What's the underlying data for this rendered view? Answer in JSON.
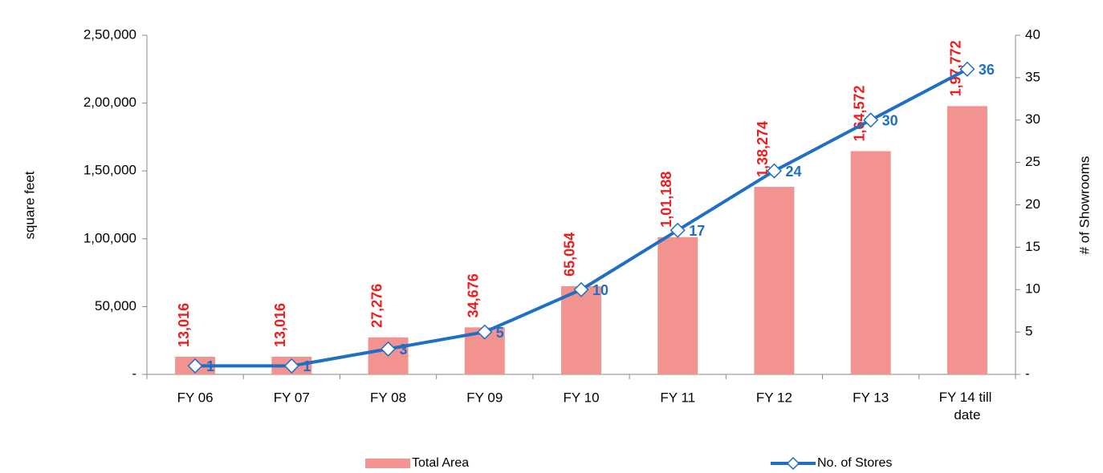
{
  "chart_data": {
    "type": "bar",
    "categories": [
      "FY 06",
      "FY 07",
      "FY 08",
      "FY 09",
      "FY 10",
      "FY 11",
      "FY 12",
      "FY 13",
      "FY 14 till date"
    ],
    "series": [
      {
        "name": "Total Area",
        "type": "bar",
        "color": "#f29390",
        "label_color": "#ee1c1c",
        "values": [
          13016,
          13016,
          27276,
          34676,
          65054,
          101188,
          138274,
          164572,
          197772
        ],
        "value_labels": [
          "13,016",
          "13,016",
          "27,276",
          "34,676",
          "65,054",
          "1,01,188",
          "1,38,274",
          "1,64,572",
          "1,97,772"
        ]
      },
      {
        "name": "No. of Stores",
        "type": "line",
        "axis": "y2",
        "color": "#1f6fc5",
        "values": [
          1,
          1,
          3,
          5,
          10,
          17,
          24,
          30,
          36
        ]
      }
    ],
    "ylabel": "square feet",
    "y2label": "# of Showrooms",
    "ylim": [
      0,
      250000
    ],
    "yticks": [
      {
        "value": 0,
        "label": "-"
      },
      {
        "value": 50000,
        "label": "50,000"
      },
      {
        "value": 100000,
        "label": "1,00,000"
      },
      {
        "value": 150000,
        "label": "1,50,000"
      },
      {
        "value": 200000,
        "label": "2,00,000"
      },
      {
        "value": 250000,
        "label": "2,50,000"
      }
    ],
    "y2lim": [
      0,
      40
    ],
    "y2ticks": [
      {
        "value": 0,
        "label": "-"
      },
      5,
      10,
      15,
      20,
      25,
      30,
      35,
      40
    ],
    "legend": "bottom"
  }
}
